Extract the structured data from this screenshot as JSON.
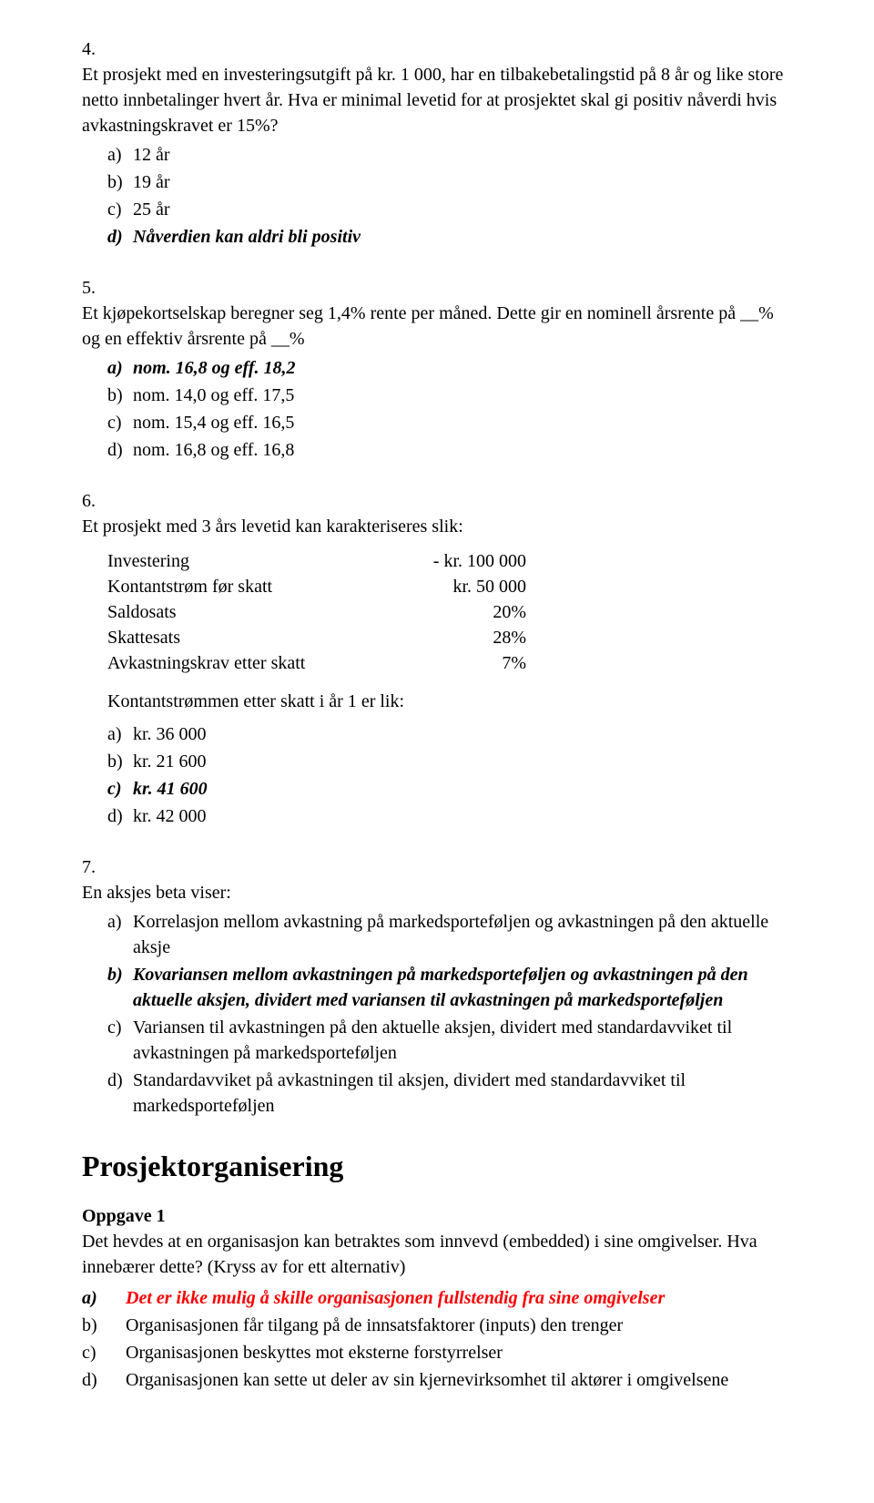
{
  "q4": {
    "num": "4.",
    "text": "Et prosjekt med en investeringsutgift på kr. 1 000, har en tilbakebetalingstid på 8 år og like store netto innbetalinger hvert år. Hva er minimal levetid for at prosjektet skal gi positiv nåverdi hvis avkastningskravet er 15%?",
    "options": [
      {
        "label": "a)",
        "text": "12 år",
        "style": ""
      },
      {
        "label": "b)",
        "text": "19 år",
        "style": ""
      },
      {
        "label": "c)",
        "text": "25 år",
        "style": ""
      },
      {
        "label": "d)",
        "text": "Nåverdien kan aldri bli positiv",
        "style": "bold-italic"
      }
    ]
  },
  "q5": {
    "num": "5.",
    "text": "Et kjøpekortselskap beregner seg 1,4% rente per måned. Dette gir en nominell årsrente på __% og en effektiv årsrente på __%",
    "options": [
      {
        "label": "a)",
        "text": "nom. 16,8 og eff. 18,2",
        "style": "bold-italic"
      },
      {
        "label": "b)",
        "text": "nom. 14,0 og eff. 17,5",
        "style": ""
      },
      {
        "label": "c)",
        "text": "nom. 15,4 og eff. 16,5",
        "style": ""
      },
      {
        "label": "d)",
        "text": "nom. 16,8 og eff. 16,8",
        "style": ""
      }
    ]
  },
  "q6": {
    "num": "6.",
    "text": "Et prosjekt med 3 års levetid kan karakteriseres slik:",
    "table": [
      {
        "label": "Investering",
        "value": "- kr. 100 000"
      },
      {
        "label": "Kontantstrøm før skatt",
        "value": "kr.  50 000"
      },
      {
        "label": "Saldosats",
        "value": "20%"
      },
      {
        "label": "Skattesats",
        "value": "28%"
      },
      {
        "label": "Avkastningskrav etter skatt",
        "value": "7%"
      }
    ],
    "subtext": "Kontantstrømmen etter skatt i år 1 er lik:",
    "options": [
      {
        "label": "a)",
        "text": "kr. 36 000",
        "style": ""
      },
      {
        "label": "b)",
        "text": "kr. 21 600",
        "style": ""
      },
      {
        "label": "c)",
        "text": "kr. 41 600",
        "style": "bold-italic"
      },
      {
        "label": "d)",
        "text": "kr. 42 000",
        "style": ""
      }
    ]
  },
  "q7": {
    "num": "7.",
    "text": "En aksjes beta viser:",
    "options": [
      {
        "label": "a)",
        "text": "Korrelasjon mellom avkastning på markedsporteføljen og avkastningen på den aktuelle aksje",
        "style": ""
      },
      {
        "label": "b)",
        "text": "Kovariansen mellom avkastningen på markedsporteføljen og avkastningen på den aktuelle aksjen, dividert med variansen til avkastningen på markedsporteføljen",
        "style": "bold-italic"
      },
      {
        "label": "c)",
        "text": "Variansen til avkastningen på den aktuelle aksjen, dividert med standardavviket til avkastningen på markedsporteføljen",
        "style": ""
      },
      {
        "label": "d)",
        "text": "Standardavviket på avkastningen til aksjen, dividert med standardavviket til markedsporteføljen",
        "style": ""
      }
    ]
  },
  "section": {
    "title": "Prosjektorganisering",
    "oppgave_title": "Oppgave 1",
    "oppgave_text": "Det hevdes at en organisasjon kan betraktes som innvevd (embedded) i sine omgivelser. Hva innebærer dette? (Kryss av for ett alternativ)",
    "options": [
      {
        "label": "a)",
        "text": "Det er ikke mulig å skille organisasjonen fullstendig fra sine omgivelser",
        "style": "bold-italic red"
      },
      {
        "label": "b)",
        "text": "Organisasjonen får tilgang på de innsatsfaktorer (inputs) den trenger",
        "style": ""
      },
      {
        "label": "c)",
        "text": "Organisasjonen beskyttes mot eksterne forstyrrelser",
        "style": ""
      },
      {
        "label": "d)",
        "text": "Organisasjonen kan sette ut deler av sin kjernevirksomhet til aktører i omgivelsene",
        "style": ""
      }
    ]
  }
}
